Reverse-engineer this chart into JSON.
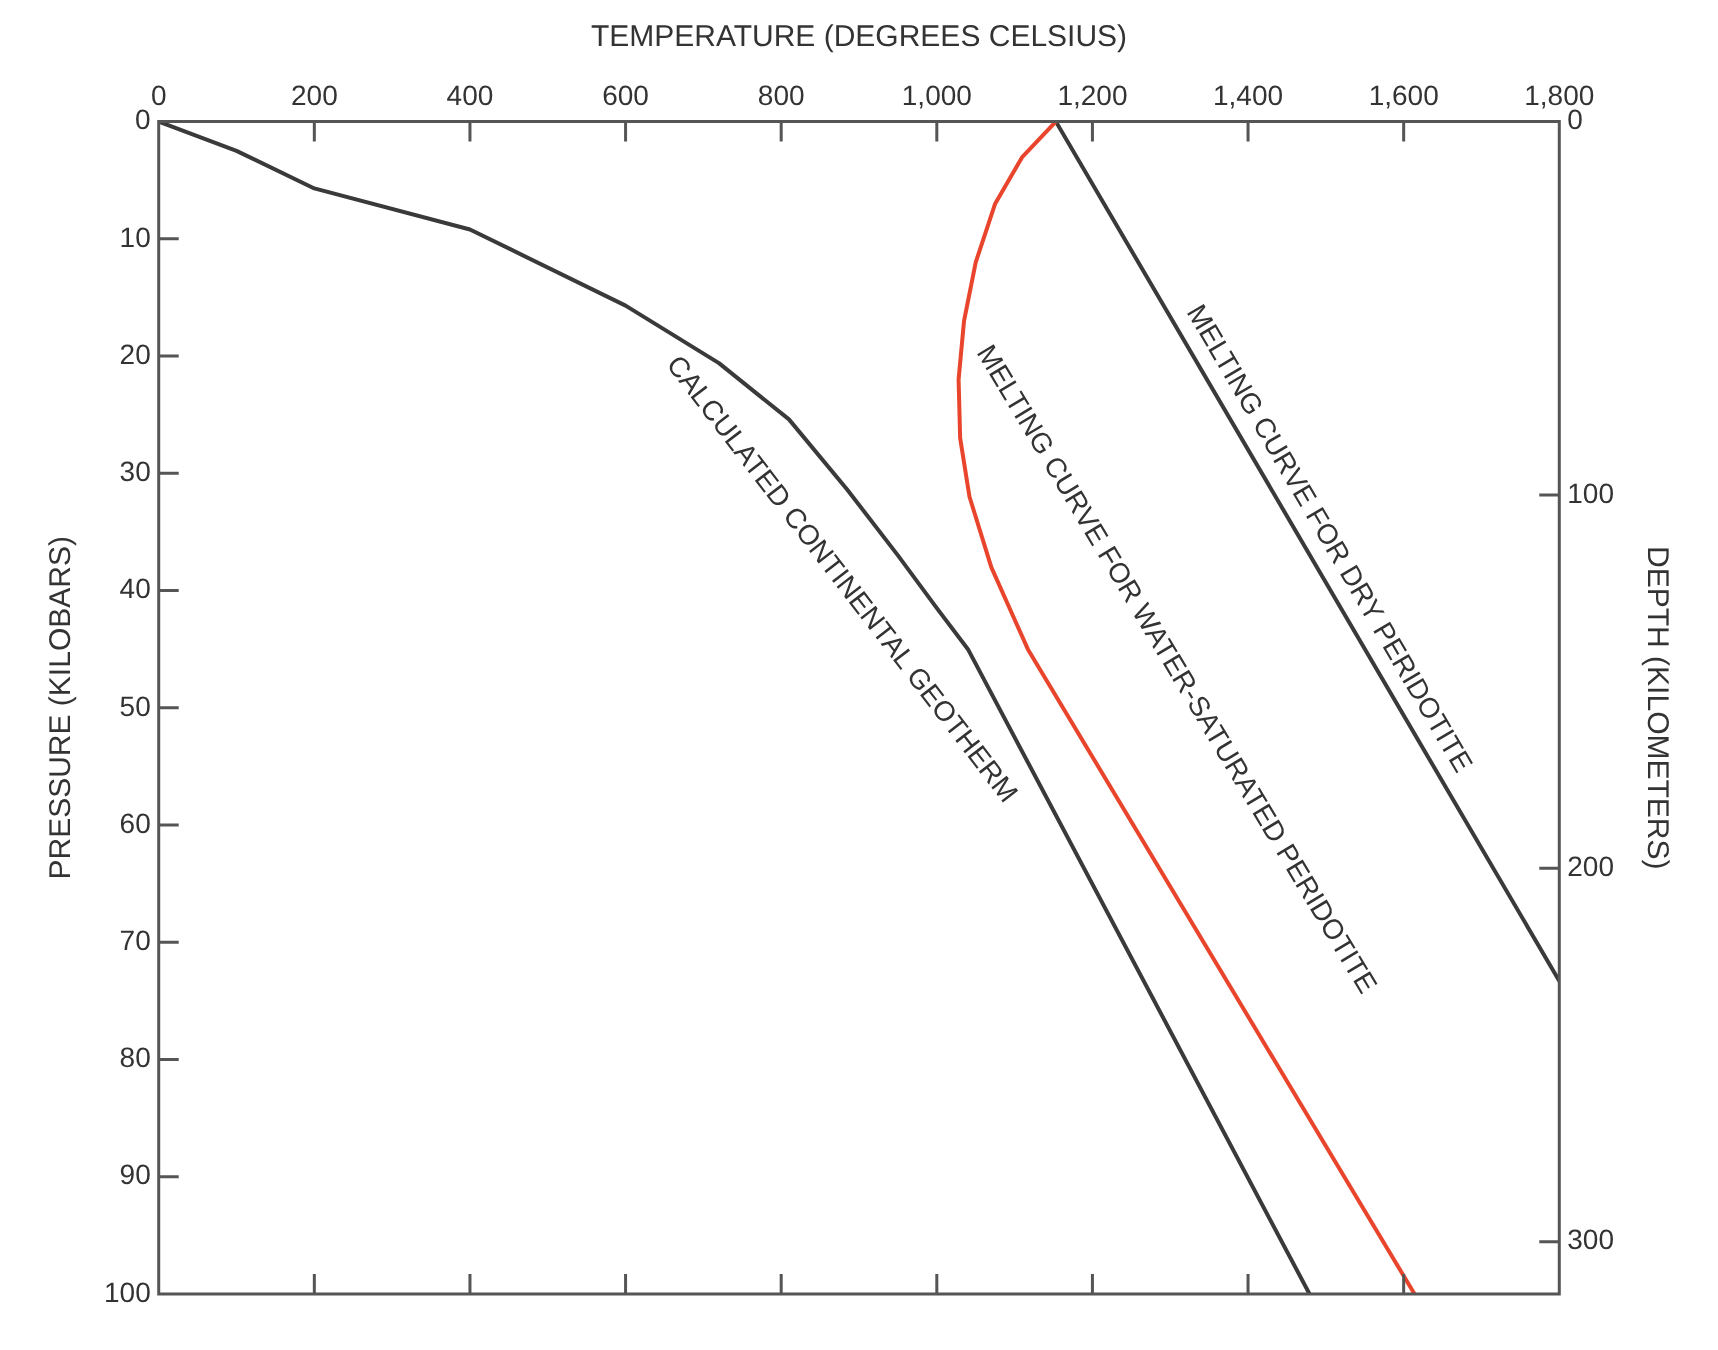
{
  "chart_data": {
    "type": "line",
    "xlabel": "TEMPERATURE (DEGREES CELSIUS)",
    "ylabel": "PRESSURE (KILOBARS)",
    "y2label": "DEPTH (KILOMETERS)",
    "xlim": [
      0,
      1800
    ],
    "xticks": [
      0,
      200,
      400,
      600,
      800,
      {
        "value": 1000,
        "label": "1,000"
      },
      {
        "value": 1200,
        "label": "1,200"
      },
      {
        "value": 1400,
        "label": "1,400"
      },
      {
        "value": 1600,
        "label": "1,600"
      },
      {
        "value": 1800,
        "label": "1,800"
      }
    ],
    "ylim": [
      100,
      0
    ],
    "yticks": [
      0,
      10,
      20,
      30,
      40,
      50,
      60,
      70,
      80,
      90,
      100
    ],
    "y2lim": [
      314,
      0
    ],
    "y2ticks": [
      0,
      100,
      200,
      300
    ],
    "grid": false,
    "legend": false,
    "marker": "none",
    "series": [
      {
        "name": "CALCULATED CONTINENTAL GEOTHERM",
        "color": "#3a3a3a",
        "x": [
          0,
          100,
          200,
          400,
          600,
          720,
          810,
          885,
          950,
          1000,
          1040,
          1479
        ],
        "values": [
          0,
          2.5,
          5.7,
          9.2,
          15.7,
          20.6,
          25.4,
          31.4,
          37,
          41.5,
          45,
          100
        ]
      },
      {
        "name": "MELTING CURVE FOR WATER-SATURATED PERIDOTITE",
        "color": "#e8452c",
        "x": [
          1153,
          1110,
          1075,
          1050,
          1035,
          1028,
          1030,
          1042,
          1070,
          1117,
          1614
        ],
        "values": [
          0,
          3,
          7,
          12,
          17,
          22,
          27,
          32,
          38,
          45,
          100
        ]
      },
      {
        "name": "MELTING CURVE FOR DRY PERIDOTITE",
        "color": "#3a3a3a",
        "x": [
          1153,
          1800
        ],
        "values": [
          0,
          73.3
        ]
      }
    ]
  }
}
